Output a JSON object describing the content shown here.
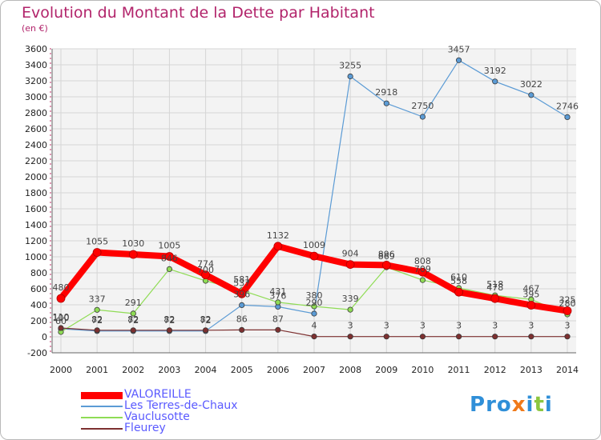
{
  "title": "Evolution du Montant de la Dette par Habitant",
  "unit_label": "(en €)",
  "brand": {
    "letters": [
      "P",
      "r",
      "o",
      "x",
      "i",
      "t",
      "i"
    ],
    "colors": [
      "#2f8fd8",
      "#2f8fd8",
      "#2f8fd8",
      "#f07a1a",
      "#2f8fd8",
      "#8cc63f",
      "#2f8fd8"
    ]
  },
  "chart_data": {
    "type": "line",
    "x": [
      "2000",
      "2001",
      "2002",
      "2003",
      "2004",
      "2005",
      "2006",
      "2007",
      "2008",
      "2009",
      "2010",
      "2011",
      "2012",
      "2013",
      "2014"
    ],
    "ylim": [
      -200,
      3600
    ],
    "yticks": [
      -200,
      0,
      200,
      400,
      600,
      800,
      1000,
      1200,
      1400,
      1600,
      1800,
      2000,
      2200,
      2400,
      2600,
      2800,
      3000,
      3200,
      3400,
      3600
    ],
    "grid": true,
    "legend_position": "bottom-left",
    "series": [
      {
        "name": "Les Terres-de-Chaux",
        "color": "#5b9bd5",
        "width": 1.2,
        "values": [
          100,
          72,
          72,
          72,
          72,
          396,
          376,
          290,
          3255,
          2918,
          2750,
          3457,
          3192,
          3022,
          2746
        ],
        "labels": [
          "100",
          "72",
          "72",
          "72",
          "72",
          "396",
          "376",
          "290",
          "3255",
          "2918",
          "2750",
          "3457",
          "3192",
          "3022",
          "2746"
        ]
      },
      {
        "name": "Vauclusotte",
        "color": "#8fdc55",
        "width": 1.2,
        "values": [
          60,
          337,
          291,
          846,
          700,
          581,
          431,
          380,
          339,
          869,
          709,
          610,
          518,
          467,
          280
        ],
        "labels": [
          "60",
          "337",
          "291",
          "846",
          "700",
          "581",
          "431",
          "380",
          "339",
          "869",
          "709",
          "610",
          "518",
          "467",
          "280"
        ]
      },
      {
        "name": "Fleurey",
        "color": "#7d3030",
        "width": 1.2,
        "values": [
          110,
          82,
          82,
          82,
          82,
          86,
          87,
          4,
          3,
          3,
          3,
          3,
          3,
          3,
          3
        ],
        "labels": [
          "110",
          "82",
          "82",
          "82",
          "82",
          "86",
          "87",
          "4",
          "3",
          "3",
          "3",
          "3",
          "3",
          "3",
          "3"
        ]
      },
      {
        "name": "VALOREILLE",
        "color": "#ff0000",
        "width": 8,
        "values": [
          480,
          1055,
          1030,
          1005,
          774,
          537,
          1132,
          1009,
          904,
          896,
          808,
          558,
          478,
          395,
          325
        ],
        "labels": [
          "480",
          "1055",
          "1030",
          "1005",
          "774",
          "537",
          "1132",
          "1009",
          "904",
          "896",
          "808",
          "558",
          "478",
          "395",
          "325"
        ]
      }
    ],
    "legend_order": [
      "VALOREILLE",
      "Les Terres-de-Chaux",
      "Vauclusotte",
      "Fleurey"
    ]
  }
}
